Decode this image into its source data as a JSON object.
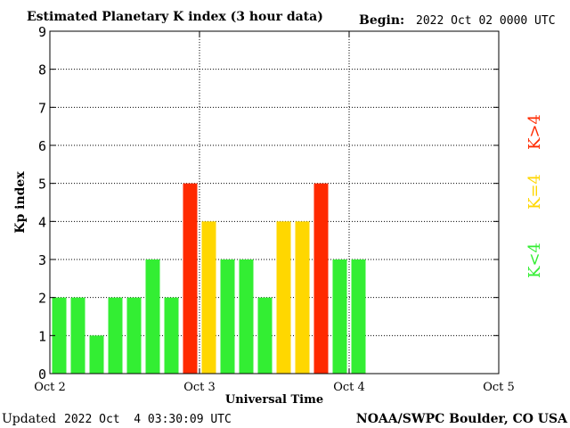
{
  "header": {
    "title": "Estimated Planetary K index (3 hour data)",
    "begin_label": "Begin:",
    "begin_value": "2022 Oct 02 0000 UTC"
  },
  "footer": {
    "updated_label": "Updated",
    "updated_value": "2022 Oct  4 03:30:09 UTC",
    "credit": "NOAA/SWPC Boulder, CO USA"
  },
  "legend": [
    {
      "label": "K<4",
      "color": "#33ee33"
    },
    {
      "label": "K=4",
      "color": "#ffd700"
    },
    {
      "label": "K>4",
      "color": "#ff2a00"
    }
  ],
  "chart_data": {
    "type": "bar",
    "title": "Estimated Planetary K index (3 hour data)",
    "xlabel": "Universal Time",
    "ylabel": "Kp index",
    "ylim": [
      0,
      9
    ],
    "yticks": [
      0,
      1,
      2,
      3,
      4,
      5,
      6,
      7,
      8,
      9
    ],
    "xticks": [
      "Oct 2",
      "Oct 3",
      "Oct 4",
      "Oct 5"
    ],
    "interval_hours": 3,
    "grid": "dotted",
    "values": [
      2,
      2,
      1,
      2,
      2,
      3,
      2,
      5,
      4,
      3,
      3,
      2,
      4,
      4,
      5,
      3,
      3
    ],
    "colors": {
      "below": "#33ee33",
      "equal": "#ffd700",
      "above": "#ff2a00"
    }
  }
}
